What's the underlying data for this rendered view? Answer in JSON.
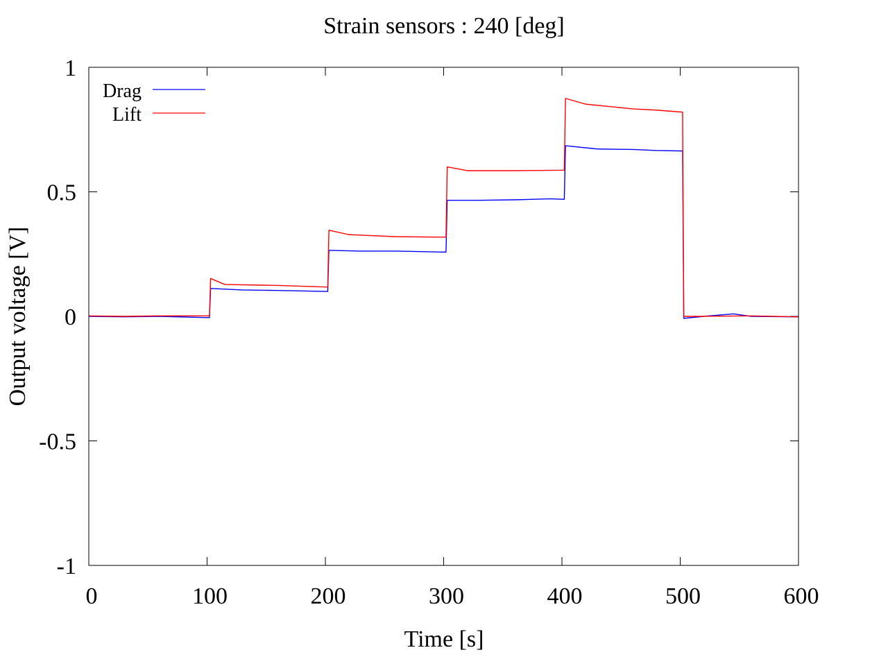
{
  "chart_data": {
    "type": "line",
    "title": "Strain sensors : 240 [deg]",
    "xlabel": "Time [s]",
    "ylabel": "Output voltage [V]",
    "xlim": [
      0,
      600
    ],
    "ylim": [
      -1,
      1
    ],
    "xticks": [
      0,
      100,
      200,
      300,
      400,
      500,
      600
    ],
    "yticks": [
      -1,
      -0.5,
      0,
      0.5,
      1
    ],
    "xtick_labels": [
      "0",
      "100",
      "200",
      "300",
      "400",
      "500",
      "600"
    ],
    "ytick_labels": [
      "-1",
      "-0.5",
      "0",
      "0.5",
      "1"
    ],
    "grid": false,
    "legend_position": "top-left",
    "series": [
      {
        "name": "Drag",
        "color": "#0000ff",
        "points": [
          [
            0,
            0.0
          ],
          [
            30,
            -0.002
          ],
          [
            60,
            0.0
          ],
          [
            100,
            -0.005
          ],
          [
            102,
            -0.005
          ],
          [
            103,
            0.112
          ],
          [
            130,
            0.106
          ],
          [
            160,
            0.104
          ],
          [
            200,
            0.1
          ],
          [
            202,
            0.1
          ],
          [
            203,
            0.265
          ],
          [
            230,
            0.262
          ],
          [
            260,
            0.262
          ],
          [
            300,
            0.258
          ],
          [
            302,
            0.258
          ],
          [
            303,
            0.466
          ],
          [
            330,
            0.466
          ],
          [
            360,
            0.468
          ],
          [
            390,
            0.472
          ],
          [
            402,
            0.47
          ],
          [
            403,
            0.685
          ],
          [
            430,
            0.672
          ],
          [
            460,
            0.67
          ],
          [
            480,
            0.666
          ],
          [
            502,
            0.664
          ],
          [
            503,
            -0.008
          ],
          [
            520,
            0.0
          ],
          [
            545,
            0.01
          ],
          [
            560,
            0.0
          ],
          [
            600,
            -0.002
          ]
        ]
      },
      {
        "name": "Lift",
        "color": "#ff0000",
        "points": [
          [
            0,
            0.002
          ],
          [
            30,
            0.0
          ],
          [
            60,
            0.002
          ],
          [
            100,
            0.002
          ],
          [
            102,
            0.002
          ],
          [
            103,
            0.152
          ],
          [
            115,
            0.128
          ],
          [
            160,
            0.124
          ],
          [
            200,
            0.118
          ],
          [
            202,
            0.118
          ],
          [
            203,
            0.346
          ],
          [
            220,
            0.328
          ],
          [
            260,
            0.32
          ],
          [
            300,
            0.318
          ],
          [
            302,
            0.318
          ],
          [
            303,
            0.6
          ],
          [
            320,
            0.585
          ],
          [
            360,
            0.585
          ],
          [
            402,
            0.587
          ],
          [
            403,
            0.875
          ],
          [
            420,
            0.852
          ],
          [
            460,
            0.833
          ],
          [
            480,
            0.828
          ],
          [
            502,
            0.82
          ],
          [
            503,
            0.0
          ],
          [
            520,
            0.0
          ],
          [
            560,
            0.002
          ],
          [
            600,
            -0.002
          ]
        ]
      }
    ]
  }
}
